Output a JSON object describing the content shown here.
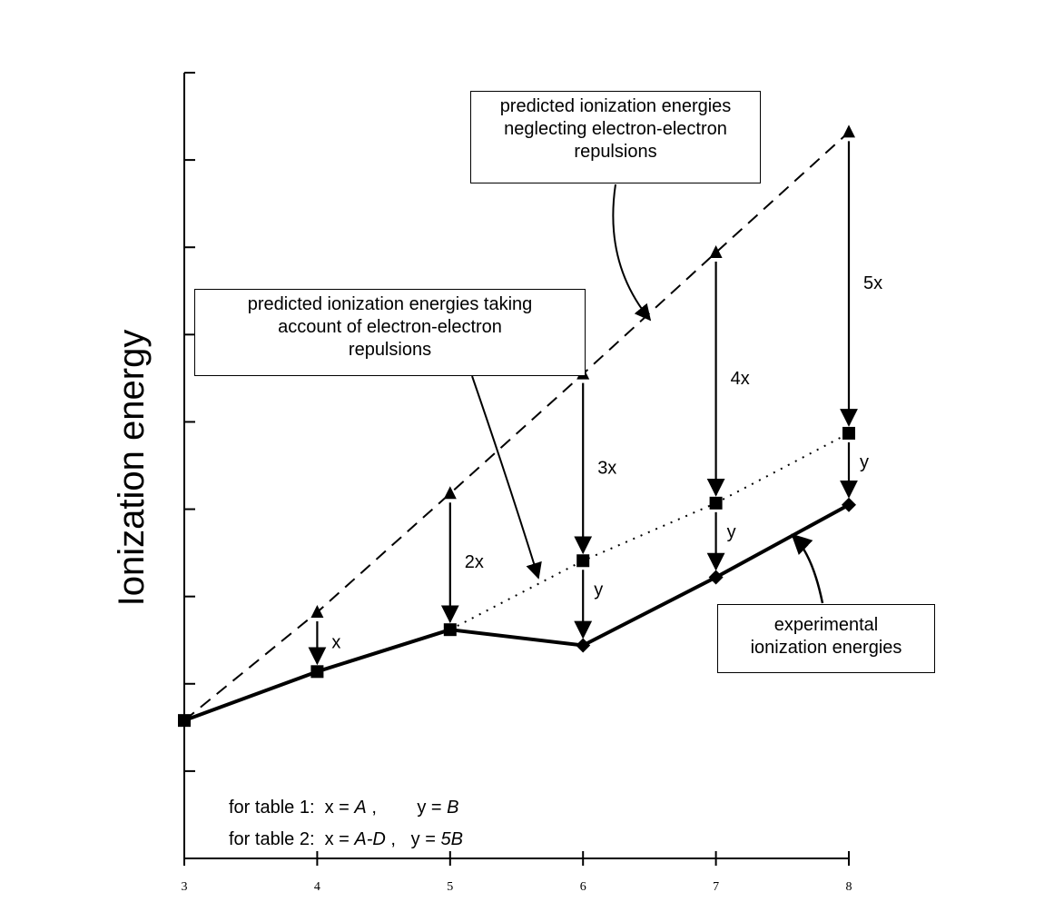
{
  "chart_data": {
    "type": "line",
    "title": "",
    "xlabel": "",
    "ylabel": "Ionization energy",
    "x": [
      3,
      4,
      5,
      6,
      7,
      8
    ],
    "xlim": [
      3,
      8
    ],
    "ylim": [
      0,
      9
    ],
    "yticks": [
      0,
      1,
      2,
      3,
      4,
      5,
      6,
      7,
      8,
      9
    ],
    "grid": false,
    "series": [
      {
        "key": "neglecting",
        "style": "dashed",
        "marker": "triangle",
        "values": [
          1.58,
          2.82,
          4.18,
          5.55,
          6.94,
          8.32
        ]
      },
      {
        "key": "taking_account",
        "style": "dotted",
        "marker": "square",
        "points": [
          [
            5,
            2.62
          ],
          [
            6,
            3.41
          ],
          [
            7,
            4.07
          ],
          [
            8,
            4.87
          ]
        ]
      },
      {
        "key": "experimental",
        "style": "solid",
        "marker": [
          "square",
          "square",
          "square",
          "diamond",
          "diamond",
          "diamond"
        ],
        "values": [
          1.58,
          2.14,
          2.62,
          2.44,
          3.22,
          4.05
        ]
      }
    ],
    "annotations": {
      "boxes": [
        {
          "key": "neglecting",
          "text": "predicted ionization energies\nneglecting electron-electron\nrepulsions"
        },
        {
          "key": "taking_account",
          "text": "predicted ionization energies taking\naccount of electron-electron\nrepulsions"
        },
        {
          "key": "experimental",
          "text": "experimental\nionization energies"
        }
      ],
      "gaps": [
        {
          "x": 4,
          "label": "x",
          "from": 2.82,
          "to": 2.14
        },
        {
          "x": 5,
          "label": "2x",
          "from": 4.18,
          "to": 2.62
        },
        {
          "x": 6,
          "label": "3x",
          "from": 5.55,
          "to": 3.41
        },
        {
          "x": 6,
          "label": "y",
          "from": 3.41,
          "to": 2.44
        },
        {
          "x": 7,
          "label": "4x",
          "from": 6.94,
          "to": 4.07
        },
        {
          "x": 7,
          "label": "y",
          "from": 4.07,
          "to": 3.22
        },
        {
          "x": 8,
          "label": "5x",
          "from": 8.32,
          "to": 4.87
        },
        {
          "x": 8,
          "label": "y",
          "from": 4.87,
          "to": 4.05
        }
      ],
      "notes": [
        {
          "prefix": "for table 1:  x = ",
          "x_expr": "A",
          "mid": " ,        y = ",
          "y_expr": "B"
        },
        {
          "prefix": "for table 2:  x = ",
          "x_expr": "A-D",
          "mid": " ,   y = ",
          "y_expr": "5B"
        }
      ]
    }
  }
}
